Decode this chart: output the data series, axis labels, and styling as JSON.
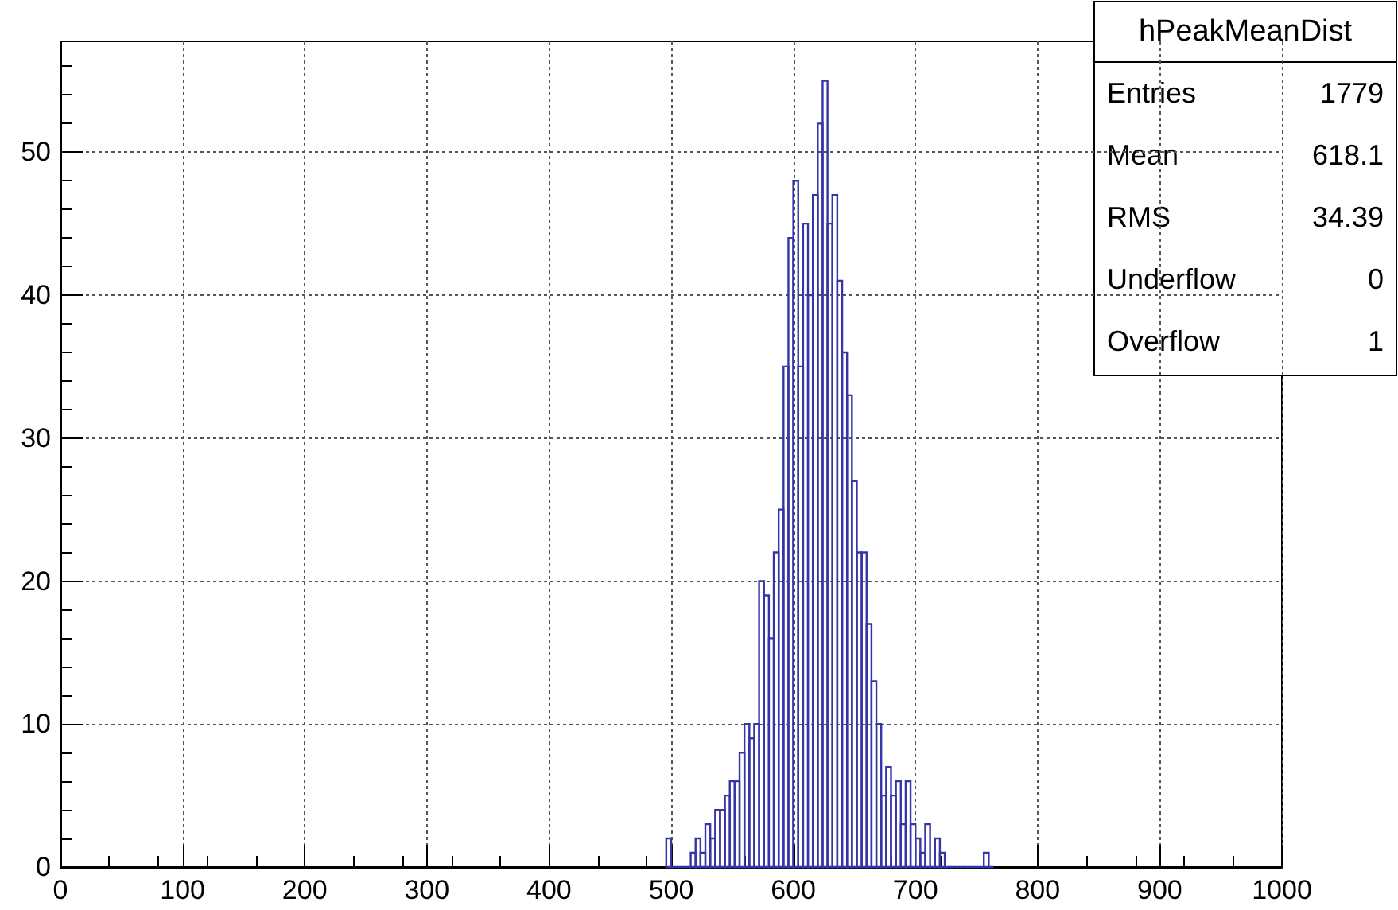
{
  "chart_data": {
    "type": "histogram",
    "title": "hPeakMeanDist",
    "bins": [
      496,
      500,
      504,
      508,
      512,
      516,
      520,
      524,
      528,
      532,
      536,
      540,
      544,
      548,
      552,
      556,
      560,
      564,
      568,
      572,
      576,
      580,
      584,
      588,
      592,
      596,
      600,
      604,
      608,
      612,
      616,
      620,
      624,
      628,
      632,
      636,
      640,
      644,
      648,
      652,
      656,
      660,
      664,
      668,
      672,
      676,
      680,
      684,
      688,
      692,
      696,
      700,
      704,
      708,
      712,
      716,
      720,
      724,
      728,
      732,
      736,
      740,
      744,
      748,
      752,
      756,
      760,
      764
    ],
    "values": [
      2,
      0,
      0,
      0,
      0,
      1,
      2,
      1,
      3,
      2,
      4,
      4,
      5,
      6,
      6,
      8,
      10,
      9,
      10,
      20,
      19,
      16,
      22,
      25,
      35,
      44,
      48,
      35,
      45,
      40,
      47,
      52,
      55,
      45,
      47,
      41,
      36,
      33,
      27,
      22,
      22,
      17,
      13,
      10,
      5,
      7,
      5,
      6,
      3,
      6,
      3,
      2,
      1,
      3,
      0,
      2,
      1,
      0,
      0,
      0,
      0,
      0,
      0,
      0,
      0,
      1,
      0
    ],
    "color": "#3535a8",
    "xlim": [
      0,
      1000
    ],
    "xticks": [
      0,
      100,
      200,
      300,
      400,
      500,
      600,
      700,
      800,
      900,
      1000
    ],
    "ylim": [
      0,
      57.75
    ],
    "yticks": [
      0,
      10,
      20,
      30,
      40,
      50
    ],
    "grid": true,
    "annotations": [
      "Entries 1779",
      "Mean 618.1",
      "RMS 34.39",
      "Underflow 0",
      "Overflow 1"
    ]
  }
}
